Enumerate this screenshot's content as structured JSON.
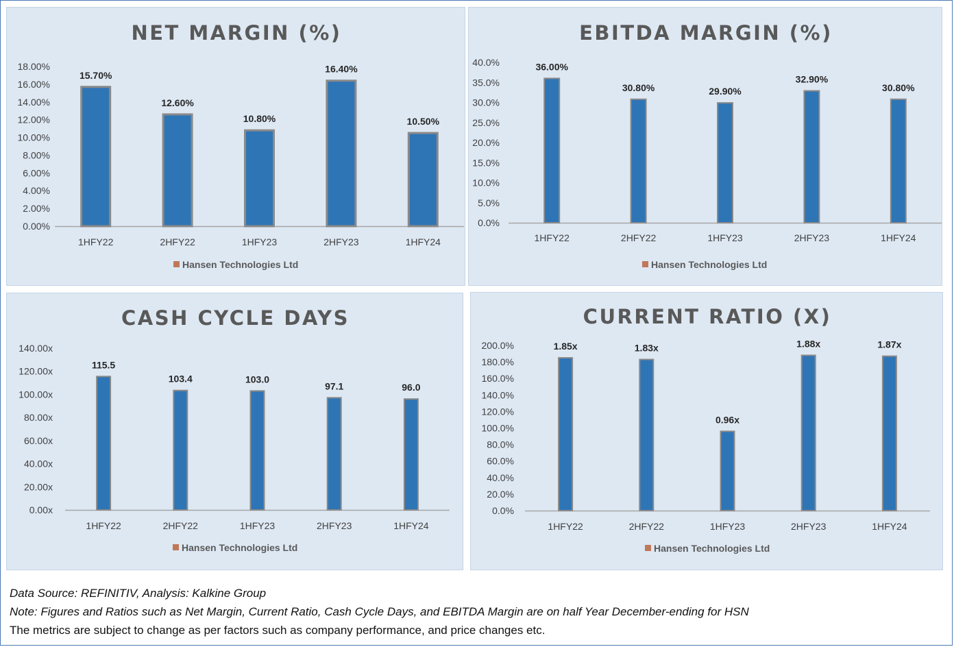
{
  "chart_data": [
    {
      "type": "bar",
      "title": "NET MARGIN (%)",
      "categories": [
        "1HFY22",
        "2HFY22",
        "1HFY23",
        "2HFY23",
        "1HFY24"
      ],
      "series": [
        {
          "name": "Hansen Technologies Ltd",
          "values": [
            15.7,
            12.6,
            10.8,
            16.4,
            10.5
          ]
        }
      ],
      "data_labels": [
        "15.70%",
        "12.60%",
        "10.80%",
        "16.40%",
        "10.50%"
      ],
      "y_ticks": [
        "0.00%",
        "2.00%",
        "4.00%",
        "6.00%",
        "8.00%",
        "10.00%",
        "12.00%",
        "14.00%",
        "16.00%",
        "18.00%"
      ],
      "ylim": [
        0,
        18
      ],
      "legend": "bottom",
      "grid": false
    },
    {
      "type": "bar",
      "title": "EBITDA MARGIN (%)",
      "categories": [
        "1HFY22",
        "2HFY22",
        "1HFY23",
        "2HFY23",
        "1HFY24"
      ],
      "series": [
        {
          "name": "Hansen Technologies Ltd",
          "values": [
            36.0,
            30.8,
            29.9,
            32.9,
            30.8
          ]
        }
      ],
      "data_labels": [
        "36.00%",
        "30.80%",
        "29.90%",
        "32.90%",
        "30.80%"
      ],
      "y_ticks": [
        "0.0%",
        "5.0%",
        "10.0%",
        "15.0%",
        "20.0%",
        "25.0%",
        "30.0%",
        "35.0%",
        "40.0%"
      ],
      "ylim": [
        0,
        40
      ],
      "legend": "bottom",
      "grid": false
    },
    {
      "type": "bar",
      "title": "CASH CYCLE DAYS",
      "categories": [
        "1HFY22",
        "2HFY22",
        "1HFY23",
        "2HFY23",
        "1HFY24"
      ],
      "series": [
        {
          "name": "Hansen Technologies Ltd",
          "values": [
            115.5,
            103.4,
            103.0,
            97.1,
            96.0
          ]
        }
      ],
      "data_labels": [
        "115.5",
        "103.4",
        "103.0",
        "97.1",
        "96.0"
      ],
      "y_ticks": [
        "0.00x",
        "20.00x",
        "40.00x",
        "60.00x",
        "80.00x",
        "100.00x",
        "120.00x",
        "140.00x"
      ],
      "ylim": [
        0,
        140
      ],
      "legend": "bottom",
      "grid": false
    },
    {
      "type": "bar",
      "title": "CURRENT RATIO (X)",
      "categories": [
        "1HFY22",
        "2HFY22",
        "1HFY23",
        "2HFY23",
        "1HFY24"
      ],
      "series": [
        {
          "name": "Hansen Technologies Ltd",
          "values": [
            1.85,
            1.83,
            0.96,
            1.88,
            1.87
          ]
        }
      ],
      "data_labels": [
        "1.85x",
        "1.83x",
        "0.96x",
        "1.88x",
        "1.87x"
      ],
      "y_ticks": [
        "0.0%",
        "20.0%",
        "40.0%",
        "60.0%",
        "80.0%",
        "100.0%",
        "120.0%",
        "140.0%",
        "160.0%",
        "180.0%",
        "200.0%"
      ],
      "ylim": [
        0,
        2
      ],
      "legend": "bottom",
      "grid": false
    }
  ],
  "colors": {
    "bar_fill": "#2e75b6",
    "bar_edge": "#8a8a8a",
    "legend_marker": "#c0785a",
    "panel_bg": "#dee8f3",
    "title_color": "#595959"
  },
  "notes": {
    "source": "Data Source: REFINITIV, Analysis: Kalkine Group",
    "note": "Note: Figures and Ratios such as Net Margin, Current Ratio, Cash Cycle Days, and EBITDA Margin are on half Year December-ending for HSN",
    "disclaimer": "The metrics are subject to change as per factors such as company performance, and price changes etc."
  }
}
